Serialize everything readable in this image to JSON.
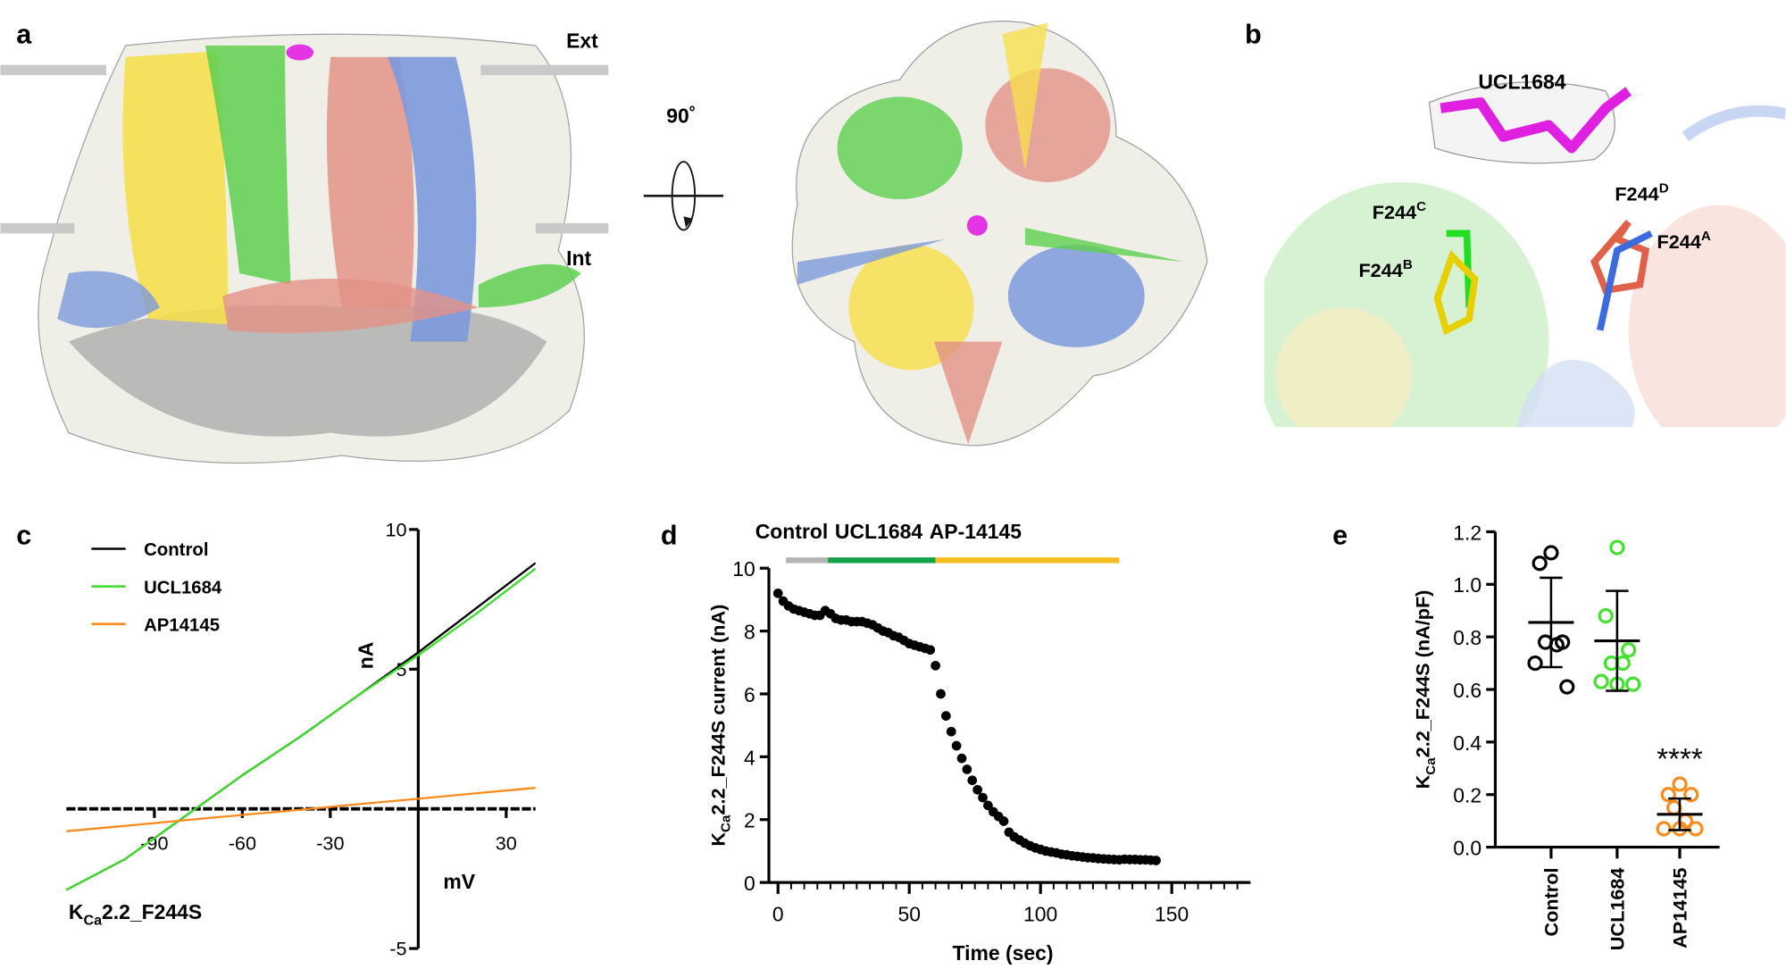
{
  "panel_labels": [
    "a",
    "b",
    "c",
    "d",
    "e"
  ],
  "structure": {
    "ext": "Ext",
    "int": "Int",
    "rotation": "90˚",
    "ligand": "UCL1684",
    "residues": [
      [
        "F244",
        "C"
      ],
      [
        "F244",
        "D"
      ],
      [
        "F244",
        "B"
      ],
      [
        "F244",
        "A"
      ]
    ]
  },
  "chart_data": [
    {
      "type": "line",
      "x": [
        -120,
        -100,
        -80,
        -60,
        -40,
        -20,
        0,
        20,
        40
      ],
      "series": [
        {
          "name": "Control",
          "color": "#000000",
          "values": [
            -2.9,
            -1.8,
            -0.3,
            1.2,
            2.6,
            4.1,
            5.6,
            7.2,
            8.8
          ]
        },
        {
          "name": "UCL1684",
          "color": "#3ddc2c",
          "values": [
            -2.9,
            -1.8,
            -0.3,
            1.2,
            2.6,
            4.1,
            5.5,
            7.0,
            8.6
          ]
        },
        {
          "name": "AP14145",
          "color": "#ff8a1c",
          "values": [
            -0.8,
            -0.61,
            -0.41,
            -0.22,
            -0.03,
            0.17,
            0.36,
            0.56,
            0.75
          ]
        }
      ],
      "xlim": [
        -120,
        40
      ],
      "ylim": [
        -5,
        10
      ],
      "xticks": [
        -90,
        -60,
        -30,
        30
      ],
      "yticks": [
        -5,
        5,
        10
      ],
      "x_label": "mV",
      "y_label": "nA",
      "annotation": [
        "K",
        "Ca",
        "2.2_F244S"
      ],
      "legend": "upper left"
    },
    {
      "type": "scatter",
      "x": [
        0,
        2,
        4,
        6,
        8,
        10,
        12,
        14,
        16,
        18,
        20,
        22,
        24,
        26,
        28,
        30,
        32,
        34,
        36,
        38,
        40,
        42,
        44,
        46,
        48,
        50,
        52,
        54,
        56,
        58,
        60,
        62,
        64,
        66,
        68,
        70,
        72,
        74,
        76,
        78,
        80,
        82,
        84,
        86,
        88,
        90,
        92,
        94,
        96,
        98,
        100,
        102,
        104,
        106,
        108,
        110,
        112,
        114,
        116,
        118,
        120,
        122,
        124,
        126,
        128,
        130,
        132,
        134,
        136,
        138,
        140,
        142,
        144
      ],
      "values": [
        9.2,
        8.95,
        8.8,
        8.7,
        8.65,
        8.6,
        8.55,
        8.5,
        8.5,
        8.65,
        8.55,
        8.4,
        8.35,
        8.35,
        8.3,
        8.3,
        8.3,
        8.25,
        8.2,
        8.1,
        8.0,
        7.95,
        7.85,
        7.8,
        7.7,
        7.6,
        7.55,
        7.5,
        7.45,
        7.4,
        6.9,
        6.0,
        5.3,
        4.8,
        4.35,
        3.95,
        3.6,
        3.25,
        2.95,
        2.7,
        2.45,
        2.25,
        2.1,
        1.95,
        1.6,
        1.45,
        1.35,
        1.25,
        1.17,
        1.1,
        1.05,
        1.0,
        0.97,
        0.94,
        0.9,
        0.88,
        0.85,
        0.83,
        0.81,
        0.79,
        0.78,
        0.76,
        0.75,
        0.74,
        0.73,
        0.72,
        0.74,
        0.73,
        0.73,
        0.72,
        0.72,
        0.71,
        0.7
      ],
      "color": "#000000",
      "xlim": [
        0,
        180
      ],
      "ylim": [
        0,
        10
      ],
      "xticks": [
        0,
        50,
        100,
        150
      ],
      "xminorticks": [
        5,
        10,
        15,
        20,
        25,
        30,
        35,
        40,
        45,
        55,
        60,
        65,
        70,
        75,
        80,
        85,
        90,
        95,
        105,
        110,
        115,
        120,
        125,
        130,
        135,
        140,
        145,
        155,
        160,
        165,
        170,
        175
      ],
      "yticks": [
        0,
        2,
        4,
        6,
        8,
        10
      ],
      "x_label": "Time (sec)",
      "y_label": [
        "K",
        "Ca",
        "2.2_F244S current (nA)"
      ],
      "periods": [
        {
          "label": "Control",
          "color": "#b4b4b4",
          "text_color": "#000000",
          "start": 3,
          "end": 19
        },
        {
          "label": "UCL1684",
          "color": "#16a24a",
          "text_color": "#16a24a",
          "start": 19,
          "end": 60
        },
        {
          "label": "AP-14145",
          "color": "#f5be1e",
          "text_color": "#f5be1e",
          "start": 60,
          "end": 130
        }
      ]
    },
    {
      "type": "dot",
      "categories": [
        "Control",
        "UCL1684",
        "AP14145"
      ],
      "groups": [
        {
          "color": "#000000",
          "values": [
            1.12,
            1.08,
            0.78,
            0.78,
            0.77,
            0.7,
            0.61
          ],
          "mean": 0.855,
          "sd": 0.17
        },
        {
          "color": "#44e02e",
          "values": [
            1.14,
            0.88,
            0.75,
            0.7,
            0.7,
            0.63,
            0.62,
            0.62
          ],
          "mean": 0.785,
          "sd": 0.19
        },
        {
          "color": "#ff8a1c",
          "values": [
            0.24,
            0.2,
            0.2,
            0.15,
            0.1,
            0.07,
            0.07,
            0.07
          ],
          "mean": 0.125,
          "sd": 0.06,
          "label": "****"
        }
      ],
      "ylim": [
        0,
        1.2
      ],
      "yticks": [
        {
          "value": 0,
          "label": "0.0"
        },
        0.2,
        0.4,
        0.6,
        0.8,
        {
          "value": 1,
          "label": "1.0"
        },
        1.2
      ],
      "y_label": [
        "K",
        "Ca",
        "2.2_F244S (nA/pF)"
      ]
    }
  ]
}
